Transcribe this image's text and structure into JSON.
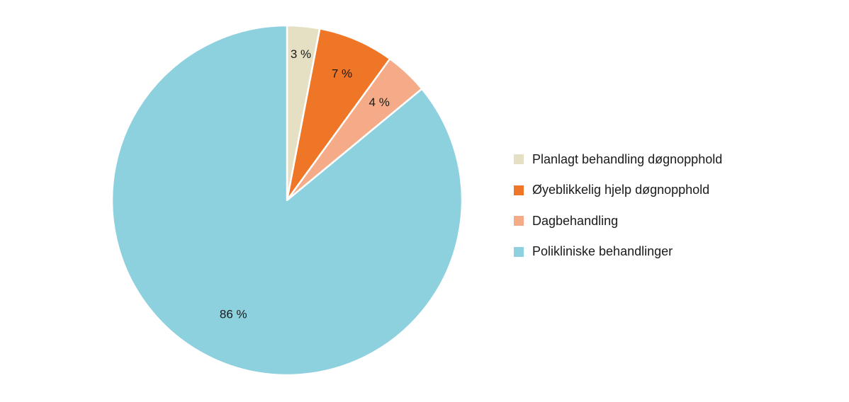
{
  "chart_data": {
    "type": "pie",
    "start_angle": "top",
    "direction": "clockwise",
    "legend_position": "right",
    "slices": [
      {
        "name": "Planlagt behandling døgnopphold",
        "value": 3,
        "label": "3 %",
        "color": "#e5e0c4"
      },
      {
        "name": "Øyeblikkelig hjelp døgnopphold",
        "value": 7,
        "label": "7 %",
        "color": "#ef7626"
      },
      {
        "name": "Dagbehandling",
        "value": 4,
        "label": "4 %",
        "color": "#f6ab88"
      },
      {
        "name": "Polikliniske behandlinger",
        "value": 86,
        "label": "86 %",
        "color": "#8dd0de"
      }
    ]
  }
}
